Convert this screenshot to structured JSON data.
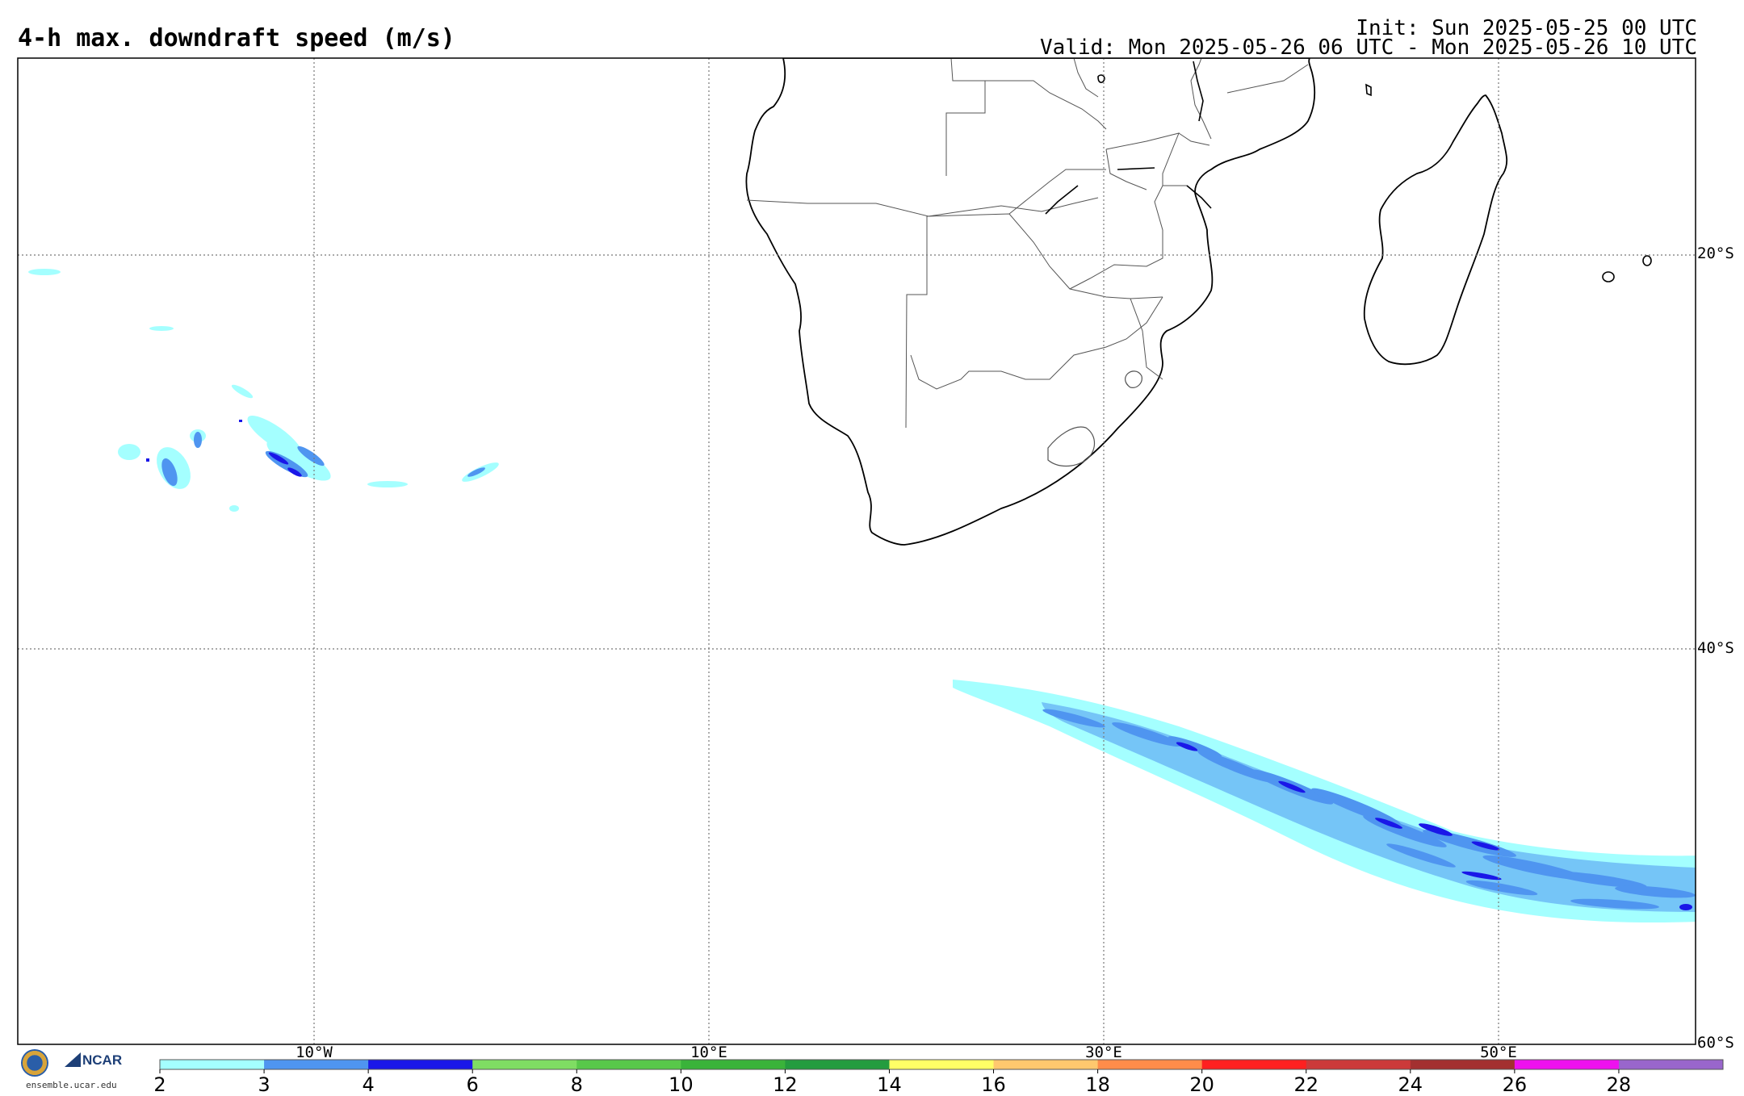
{
  "header": {
    "title": "4-h max. downdraft speed (m/s)",
    "init": "Init: Sun 2025-05-25 00 UTC",
    "valid": "Valid: Mon 2025-05-26 06 UTC - Mon 2025-05-26 10 UTC"
  },
  "grid": {
    "lat_labels": [
      "20°S",
      "40°S",
      "60°S"
    ],
    "lon_labels": [
      "10°W",
      "10°E",
      "30°E",
      "50°E"
    ]
  },
  "colorbar": {
    "ticks": [
      "2",
      "3",
      "4",
      "6",
      "8",
      "10",
      "12",
      "14",
      "16",
      "18",
      "20",
      "22",
      "24",
      "26",
      "28"
    ],
    "colors": [
      "#a4ffff",
      "#4f95f0",
      "#1a17e8",
      "#7fdd63",
      "#58c84a",
      "#3ab33a",
      "#249c3f",
      "#ffff66",
      "#ffc86e",
      "#ff8c4a",
      "#ff2020",
      "#cc3a3a",
      "#a33030",
      "#ee11ee",
      "#9966cc"
    ]
  },
  "logo": {
    "org": "NCAR",
    "site": "ensemble.ucar.edu"
  }
}
